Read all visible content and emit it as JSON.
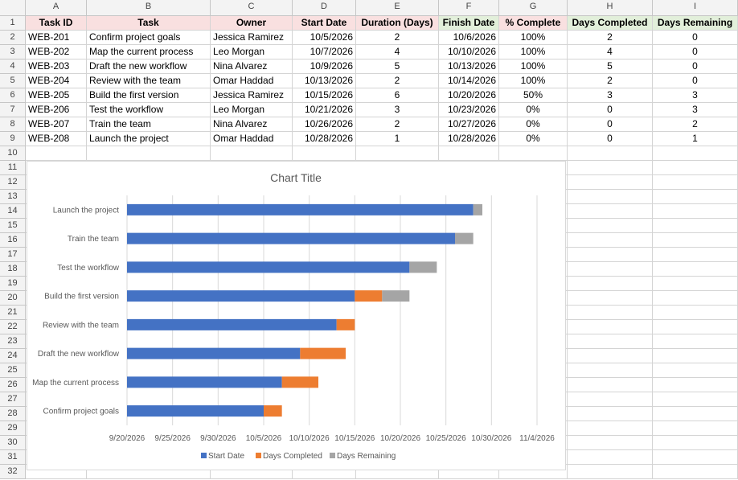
{
  "columns": [
    "A",
    "B",
    "C",
    "D",
    "E",
    "F",
    "G",
    "H",
    "I"
  ],
  "rows": [
    "1",
    "2",
    "3",
    "4",
    "5",
    "6",
    "7",
    "8",
    "9",
    "10",
    "11",
    "12",
    "13",
    "14",
    "15",
    "16",
    "17",
    "18",
    "19",
    "20",
    "21",
    "22",
    "23",
    "24",
    "25",
    "26",
    "27",
    "28",
    "29",
    "30",
    "31",
    "32"
  ],
  "headers": [
    "Task ID",
    "Task",
    "Owner",
    "Start Date",
    "Duration (Days)",
    "Finish Date",
    "% Complete",
    "Days Completed",
    "Days Remaining"
  ],
  "table": [
    [
      "WEB-201",
      "Confirm project goals",
      "Jessica Ramirez",
      "10/5/2026",
      "2",
      "10/6/2026",
      "100%",
      "2",
      "0"
    ],
    [
      "WEB-202",
      "Map the current process",
      "Leo Morgan",
      "10/7/2026",
      "4",
      "10/10/2026",
      "100%",
      "4",
      "0"
    ],
    [
      "WEB-203",
      "Draft the new workflow",
      "Nina Alvarez",
      "10/9/2026",
      "5",
      "10/13/2026",
      "100%",
      "5",
      "0"
    ],
    [
      "WEB-204",
      "Review with the team",
      "Omar Haddad",
      "10/13/2026",
      "2",
      "10/14/2026",
      "100%",
      "2",
      "0"
    ],
    [
      "WEB-205",
      "Build the first version",
      "Jessica Ramirez",
      "10/15/2026",
      "6",
      "10/20/2026",
      "50%",
      "3",
      "3"
    ],
    [
      "WEB-206",
      "Test the workflow",
      "Leo Morgan",
      "10/21/2026",
      "3",
      "10/23/2026",
      "0%",
      "0",
      "3"
    ],
    [
      "WEB-207",
      "Train the team",
      "Nina Alvarez",
      "10/26/2026",
      "2",
      "10/27/2026",
      "0%",
      "0",
      "2"
    ],
    [
      "WEB-208",
      "Launch the project",
      "Omar Haddad",
      "10/28/2026",
      "1",
      "10/28/2026",
      "0%",
      "0",
      "1"
    ]
  ],
  "colors": {
    "start": "#4472c4",
    "completed": "#ed7d31",
    "remaining": "#a5a5a5",
    "pink_header": "#f9e0e0",
    "green_header": "#e2efda"
  },
  "chart_data": {
    "type": "bar",
    "orientation": "horizontal",
    "stacked": true,
    "title": "Chart Title",
    "categories": [
      "Confirm project goals",
      "Map the current process",
      "Draft the new workflow",
      "Review with the team",
      "Build the first version",
      "Test the workflow",
      "Train the team",
      "Launch the project"
    ],
    "x_ticks": [
      "9/20/2026",
      "9/25/2026",
      "9/30/2026",
      "10/5/2026",
      "10/10/2026",
      "10/15/2026",
      "10/20/2026",
      "10/25/2026",
      "10/30/2026",
      "11/4/2026"
    ],
    "xlim": [
      "9/20/2026",
      "11/4/2026"
    ],
    "series": [
      {
        "name": "Start Date",
        "values": [
          "10/5/2026",
          "10/7/2026",
          "10/9/2026",
          "10/13/2026",
          "10/15/2026",
          "10/21/2026",
          "10/26/2026",
          "10/28/2026"
        ]
      },
      {
        "name": "Days Completed",
        "values": [
          2,
          4,
          5,
          2,
          3,
          0,
          0,
          0
        ]
      },
      {
        "name": "Days Remaining",
        "values": [
          0,
          0,
          0,
          0,
          3,
          3,
          2,
          1
        ]
      }
    ],
    "legend": "bottom",
    "grid": "vertical"
  }
}
